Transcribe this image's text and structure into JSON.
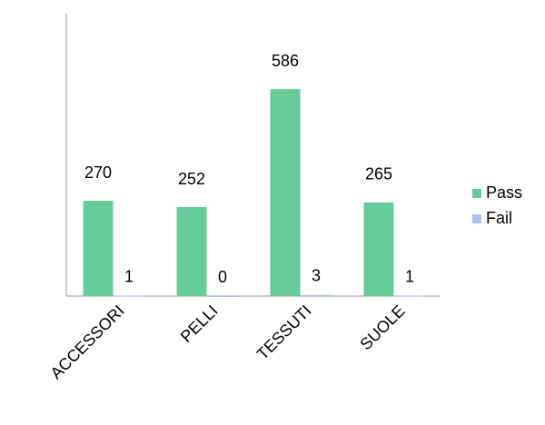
{
  "chart_data": {
    "type": "bar",
    "categories": [
      "ACCESSORI",
      "PELLI",
      "TESSUTI",
      "SUOLE"
    ],
    "series": [
      {
        "name": "Pass",
        "color": "#66cc99",
        "values": [
          270,
          252,
          586,
          265
        ]
      },
      {
        "name": "Fail",
        "color": "#a9c4f5",
        "values": [
          1,
          0,
          3,
          1
        ]
      }
    ],
    "ylim": [
      0,
      800
    ],
    "legend": "right"
  }
}
